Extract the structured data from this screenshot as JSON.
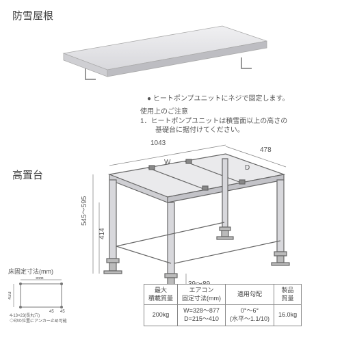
{
  "titles": {
    "roof": "防雪屋根",
    "stand": "高置台"
  },
  "notes": {
    "bullet": "● ヒートポンプユニットにネジで固定します。",
    "caution_head": "使用上のご注意",
    "caution_l1": "1．ヒートポンプユニットは積雪面以上の高さの",
    "caution_l2": "基礎台に据付けてください。"
  },
  "dims": {
    "top_width": "1043",
    "w_label": "W",
    "depth": "478",
    "d_label": "D",
    "height_range": "545～595",
    "mid_h": "414",
    "foot_h": "39～89"
  },
  "floor": {
    "title": "床固定寸法(mm)",
    "w": "998",
    "h": "433",
    "inner1": "45",
    "inner2": "45",
    "note1": "4-13×23(長丸穴)",
    "note2": "◇印の位置にアンカー止め可能"
  },
  "table": {
    "h1": "最大\n積載質量",
    "h2": "エアコン\n固定寸法(mm)",
    "h3": "適用勾配",
    "h4": "製品\n質量",
    "c1": "200kg",
    "c2": "W=328～877\nD=215～410",
    "c3": "0°～6°\n(水平～1.1/10)",
    "c4": "16.0kg"
  },
  "colors": {
    "panel_light": "#e8e8ea",
    "panel_dark": "#c8c8cc",
    "line": "#777",
    "dim_line": "#888"
  }
}
